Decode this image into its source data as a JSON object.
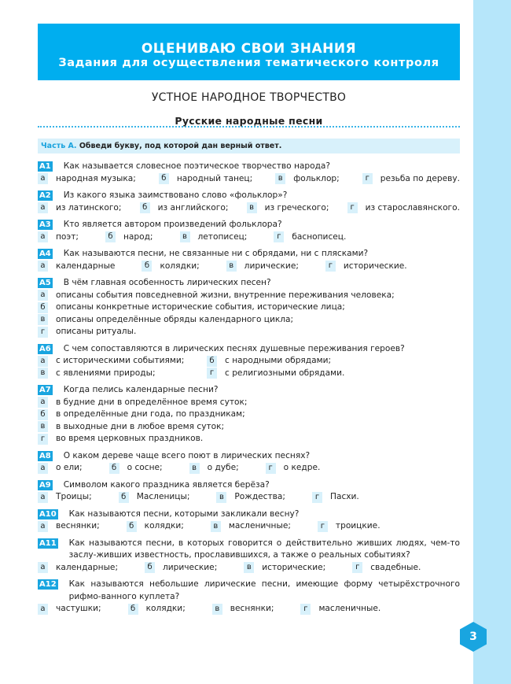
{
  "banner": {
    "title": "ОЦЕНИВАЮ СВОИ ЗНАНИЯ",
    "subtitle": "Задания для осуществления тематического контроля"
  },
  "section_title": "УСТНОЕ НАРОДНОЕ ТВОРЧЕСТВО",
  "subsection_title": "Русские народные песни",
  "part": {
    "label": "Часть А.",
    "instruction": "Обведи букву, под которой дан верный ответ."
  },
  "questions": [
    {
      "num": "А1",
      "text": "Как называется словесное поэтическое творчество народа?",
      "layout": "full",
      "options": [
        [
          "а",
          "народная музыка;"
        ],
        [
          "б",
          "народный танец;"
        ],
        [
          "в",
          "фольклор;"
        ],
        [
          "г",
          "резьба по дереву."
        ]
      ]
    },
    {
      "num": "А2",
      "text": "Из какого языка заимствовано слово «фольклор»?",
      "layout": "full",
      "options": [
        [
          "а",
          "из латинского;"
        ],
        [
          "б",
          "из английского;"
        ],
        [
          "в",
          "из греческого;"
        ],
        [
          "г",
          "из старославянского."
        ]
      ]
    },
    {
      "num": "А3",
      "text": "Кто является автором произведений фольклора?",
      "layout": "left",
      "options": [
        [
          "а",
          "поэт;"
        ],
        [
          "б",
          "народ;"
        ],
        [
          "в",
          "летописец;"
        ],
        [
          "г",
          "баснописец."
        ]
      ]
    },
    {
      "num": "А4",
      "text": "Как называются песни, не связанные ни с обрядами, ни с плясками?",
      "layout": "left",
      "options": [
        [
          "а",
          "календарные"
        ],
        [
          "б",
          "колядки;"
        ],
        [
          "в",
          "лирические;"
        ],
        [
          "г",
          "исторические."
        ]
      ]
    },
    {
      "num": "А5",
      "text": "В чём главная особенность лирических песен?",
      "layout": "col",
      "options": [
        [
          "а",
          "описаны события повседневной жизни, внутренние переживания человека;"
        ],
        [
          "б",
          "описаны конкретные исторические события, исторические лица;"
        ],
        [
          "в",
          "описаны определённые обряды календарного цикла;"
        ],
        [
          "г",
          "описаны ритуалы."
        ]
      ]
    },
    {
      "num": "А6",
      "text": "С чем сопоставляются в лирических песнях душевные переживания героев?",
      "layout": "grid",
      "options": [
        [
          "а",
          "с историческими событиями;"
        ],
        [
          "б",
          "с народными обрядами;"
        ],
        [
          "в",
          "с явлениями природы;"
        ],
        [
          "г",
          "с религиозными обрядами."
        ]
      ]
    },
    {
      "num": "А7",
      "text": "Когда пелись календарные песни?",
      "layout": "col",
      "options": [
        [
          "а",
          "в будние дни в определённое время суток;"
        ],
        [
          "б",
          "в определённые дни года, по праздникам;"
        ],
        [
          "в",
          "в выходные дни в любое время суток;"
        ],
        [
          "г",
          "во время церковных праздников."
        ]
      ]
    },
    {
      "num": "А8",
      "text": "О каком дереве чаще всего поют в лирических песнях?",
      "layout": "left",
      "options": [
        [
          "а",
          "о ели;"
        ],
        [
          "б",
          "о сосне;"
        ],
        [
          "в",
          "о дубе;"
        ],
        [
          "г",
          "о кедре."
        ]
      ]
    },
    {
      "num": "А9",
      "text": "Символом какого праздника является берёза?",
      "layout": "left",
      "options": [
        [
          "а",
          "Троицы;"
        ],
        [
          "б",
          "Масленицы;"
        ],
        [
          "в",
          "Рождества;"
        ],
        [
          "г",
          "Пасхи."
        ]
      ]
    },
    {
      "num": "А10",
      "text": "Как называются песни, которыми закликали весну?",
      "layout": "left",
      "options": [
        [
          "а",
          "веснянки;"
        ],
        [
          "б",
          "колядки;"
        ],
        [
          "в",
          "масленичные;"
        ],
        [
          "г",
          "троицкие."
        ]
      ]
    },
    {
      "num": "А11",
      "text": "Как называются песни, в которых говорится о действительно живших людях, чем-то заслу-живших известность, прославившихся, а также о реальных событиях?",
      "layout": "left",
      "options": [
        [
          "а",
          "календарные;"
        ],
        [
          "б",
          "лирические;"
        ],
        [
          "в",
          "исторические;"
        ],
        [
          "г",
          "свадебные."
        ]
      ]
    },
    {
      "num": "А12",
      "text": "Как называются небольшие лирические песни, имеющие форму четырёхстрочного рифмо-ванного куплета?",
      "layout": "left",
      "options": [
        [
          "а",
          "частушки;"
        ],
        [
          "б",
          "колядки;"
        ],
        [
          "в",
          "веснянки;"
        ],
        [
          "г",
          "масленичные."
        ]
      ]
    }
  ],
  "page_number": "3",
  "colors": {
    "accent": "#00aeef",
    "light": "#d8f1fb",
    "strip": "#b6e6fa"
  }
}
